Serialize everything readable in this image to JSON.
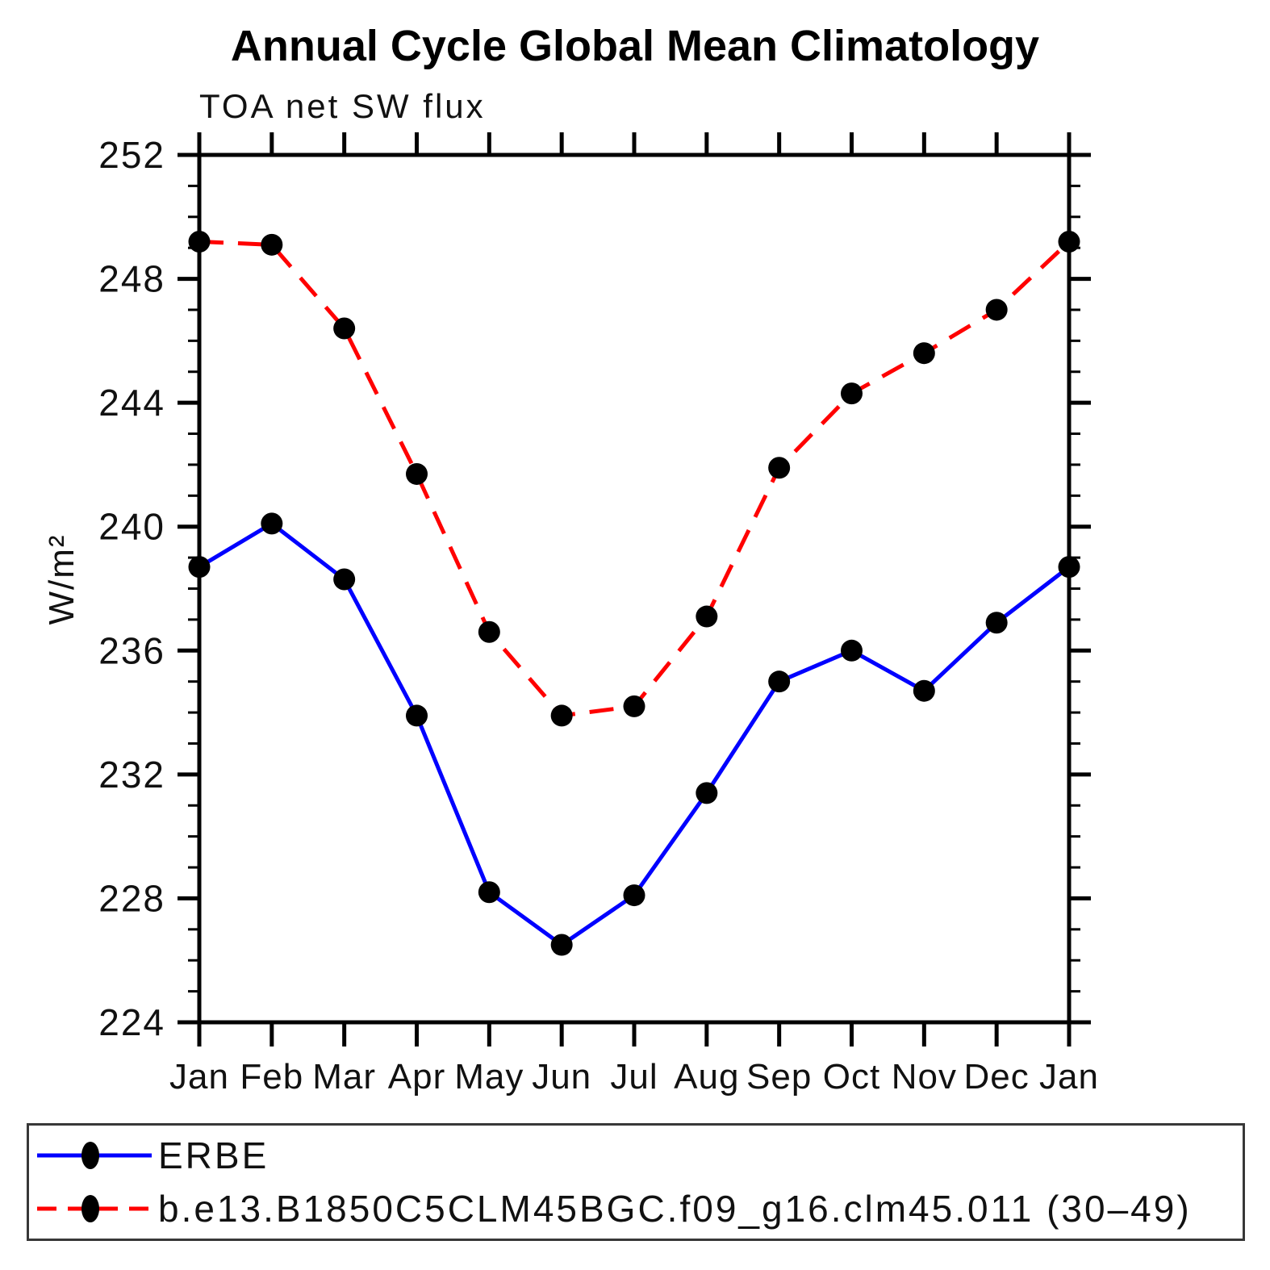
{
  "chart_data": {
    "type": "line",
    "title": "Annual Cycle Global Mean Climatology",
    "subtitle": "TOA net SW flux",
    "ylabel": "W/m²",
    "categories": [
      "Jan",
      "Feb",
      "Mar",
      "Apr",
      "May",
      "Jun",
      "Jul",
      "Aug",
      "Sep",
      "Oct",
      "Nov",
      "Dec",
      "Jan"
    ],
    "ylim": [
      224,
      252
    ],
    "ytick_major_step": 4,
    "ytick_minor_step": 1,
    "ytick_labels": [
      "224",
      "228",
      "232",
      "236",
      "240",
      "244",
      "248",
      "252"
    ],
    "grid": false,
    "axis_color": "#000000",
    "marker_color": "#000000",
    "legend_position": "bottom-box",
    "series": [
      {
        "name": "ERBE",
        "color": "#0000ff",
        "line_style": "solid",
        "marker": "filled-circle",
        "values": [
          238.7,
          240.1,
          238.3,
          233.9,
          228.2,
          226.5,
          228.1,
          231.4,
          235.0,
          236.0,
          234.7,
          236.9,
          238.7
        ]
      },
      {
        "name": "b.e13.B1850C5CLM45BGC.f09_g16.clm45.011 (30–49)",
        "color": "#ff0000",
        "line_style": "dashed",
        "marker": "filled-circle",
        "values": [
          249.2,
          249.1,
          246.4,
          241.7,
          236.6,
          233.9,
          234.2,
          237.1,
          241.9,
          244.3,
          245.6,
          247.0,
          249.2
        ]
      }
    ]
  }
}
